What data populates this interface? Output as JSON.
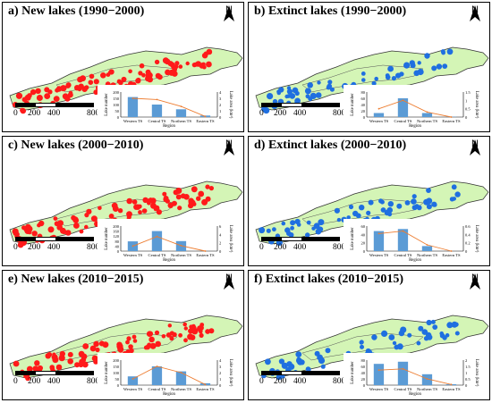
{
  "colors": {
    "new": "#ff1a1a",
    "extinct": "#1f6fe0",
    "land": "#d4f5b6",
    "bar": "#5b9bd5",
    "line": "#ed7d31"
  },
  "north_label": "N",
  "scale": {
    "ticks": [
      "0",
      "200",
      "400",
      "800"
    ],
    "unit": "Km"
  },
  "axes": {
    "left": "Lake number",
    "right": "Lake area (km²)",
    "x": "Region"
  },
  "panels": [
    {
      "title": "a) New lakes (1990−2000)",
      "kind": "new",
      "chart_data": {
        "type": "bar",
        "categories": [
          "Western TS",
          "Central TS",
          "Northern TS",
          "Eastern TS"
        ],
        "series": [
          {
            "values": [
              160,
              100,
              62,
              12
            ]
          }
        ],
        "line": [
          3.0,
          2.8,
          1.7,
          0.1
        ],
        "ylim": [
          0,
          200
        ],
        "yticks": [
          "0",
          "50",
          "100",
          "150",
          "200"
        ],
        "y2lim": [
          0,
          4
        ],
        "y2ticks": [
          "0",
          "1",
          "2",
          "3",
          "4"
        ]
      }
    },
    {
      "title": "b) Extinct lakes (1990−2000)",
      "kind": "extinct",
      "chart_data": {
        "type": "bar",
        "categories": [
          "Western TS",
          "Central TS",
          "Northern TS",
          "Eastern TS"
        ],
        "series": [
          {
            "values": [
              13,
              60,
              13,
              1
            ]
          }
        ],
        "line": [
          0.5,
          1.0,
          0.3,
          0.0
        ],
        "ylim": [
          0,
          80
        ],
        "yticks": [
          "0",
          "20",
          "40",
          "60",
          "80"
        ],
        "y2lim": [
          0,
          1.5
        ],
        "y2ticks": [
          "0",
          "0.5",
          "1",
          "1.5"
        ]
      }
    },
    {
      "title": "c) New lakes (2000−2010)",
      "kind": "new",
      "chart_data": {
        "type": "bar",
        "categories": [
          "Western TS",
          "Central TS",
          "Northern TS",
          "Eastern TS"
        ],
        "series": [
          {
            "values": [
              78,
              160,
              80,
              0
            ]
          }
        ],
        "line": [
          1.2,
          3.5,
          1.3,
          0.0
        ],
        "ylim": [
          0,
          200
        ],
        "yticks": [
          "0",
          "40",
          "80",
          "120",
          "160",
          "200"
        ],
        "y2lim": [
          0,
          6
        ],
        "y2ticks": [
          "0",
          "2",
          "4",
          "6"
        ]
      }
    },
    {
      "title": "d) Extinct lakes (2000−2010)",
      "kind": "extinct",
      "chart_data": {
        "type": "bar",
        "categories": [
          "Western TS",
          "Central TS",
          "Northern TS",
          "Eastern TS"
        ],
        "series": [
          {
            "values": [
              48,
              53,
              12,
              0
            ]
          }
        ],
        "line": [
          0.42,
          0.48,
          0.15,
          0.0
        ],
        "ylim": [
          0,
          60
        ],
        "yticks": [
          "0",
          "20",
          "40",
          "60"
        ],
        "y2lim": [
          0,
          0.6
        ],
        "y2ticks": [
          "0",
          "0.2",
          "0.4",
          "0.6"
        ]
      }
    },
    {
      "title": "e) New lakes (2010−2015)",
      "kind": "new",
      "chart_data": {
        "type": "bar",
        "categories": [
          "Western TS",
          "Central TS",
          "Northern TS",
          "Eastern TS"
        ],
        "series": [
          {
            "values": [
              70,
              150,
              110,
              15
            ]
          }
        ],
        "line": [
          1.0,
          3.0,
          2.0,
          0.1
        ],
        "ylim": [
          0,
          200
        ],
        "yticks": [
          "0",
          "50",
          "100",
          "150",
          "200"
        ],
        "y2lim": [
          0,
          4
        ],
        "y2ticks": [
          "0",
          "1",
          "2",
          "3",
          "4"
        ]
      }
    },
    {
      "title": "f) Extinct lakes (2010−2015)",
      "kind": "extinct",
      "chart_data": {
        "type": "bar",
        "categories": [
          "Western TS",
          "Central TS",
          "Northern TS",
          "Eastern TS"
        ],
        "series": [
          {
            "values": [
              68,
              75,
              35,
              3
            ]
          }
        ],
        "line": [
          1.2,
          1.3,
          0.5,
          0.05
        ],
        "ylim": [
          0,
          80
        ],
        "yticks": [
          "0",
          "20",
          "40",
          "60",
          "80"
        ],
        "y2lim": [
          0,
          2
        ],
        "y2ticks": [
          "0",
          "0.5",
          "1",
          "1.5",
          "2"
        ]
      }
    }
  ]
}
